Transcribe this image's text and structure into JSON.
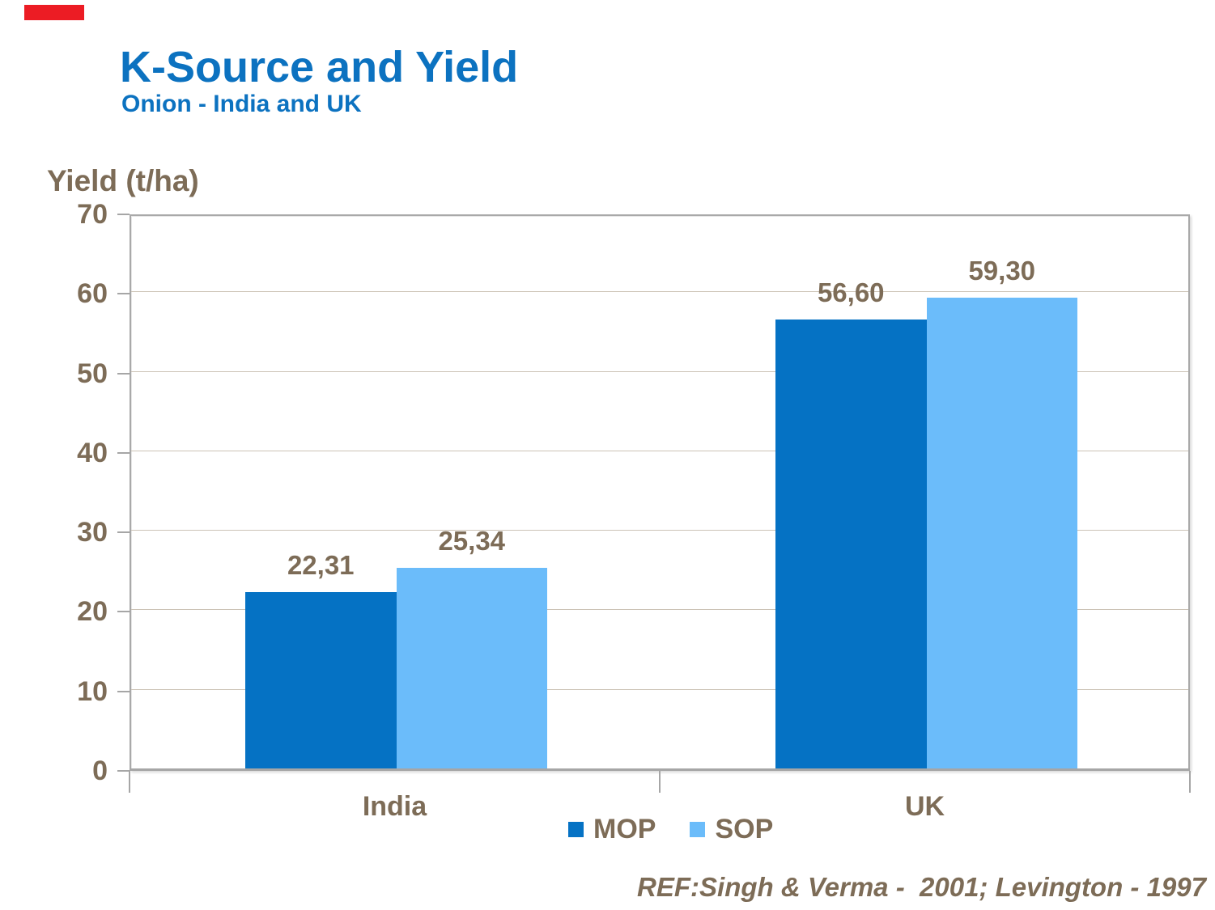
{
  "accent": {
    "color": "#EC1C24"
  },
  "header": {
    "title": "K-Source and Yield",
    "subtitle": "Onion - India and UK",
    "title_color": "#0C72C0"
  },
  "chart_data": {
    "type": "bar",
    "title": "K-Source and Yield",
    "subtitle": "Onion - India and UK",
    "ylabel": "Yield (t/ha)",
    "xlabel": "",
    "categories": [
      "India",
      "UK"
    ],
    "series": [
      {
        "name": "MOP",
        "color": "#0572C4",
        "values": [
          22.31,
          56.6
        ],
        "labels": [
          "22,31",
          "56,60"
        ]
      },
      {
        "name": "SOP",
        "color": "#6BBCFA",
        "values": [
          25.34,
          59.3
        ],
        "labels": [
          "25,34",
          "59,30"
        ]
      }
    ],
    "ylim": [
      0,
      70
    ],
    "ytick_step": 10,
    "yticks": [
      0,
      10,
      20,
      30,
      40,
      50,
      60,
      70
    ],
    "grid": true,
    "legend_position": "bottom",
    "decimal_separator": ",",
    "label_color": "#7D6C57",
    "grid_color": "#CCC3B6",
    "axis_color": "#A6A6A6"
  },
  "footer": {
    "reference": "REF:Singh & Verma -  2001; Levington - 1997"
  }
}
